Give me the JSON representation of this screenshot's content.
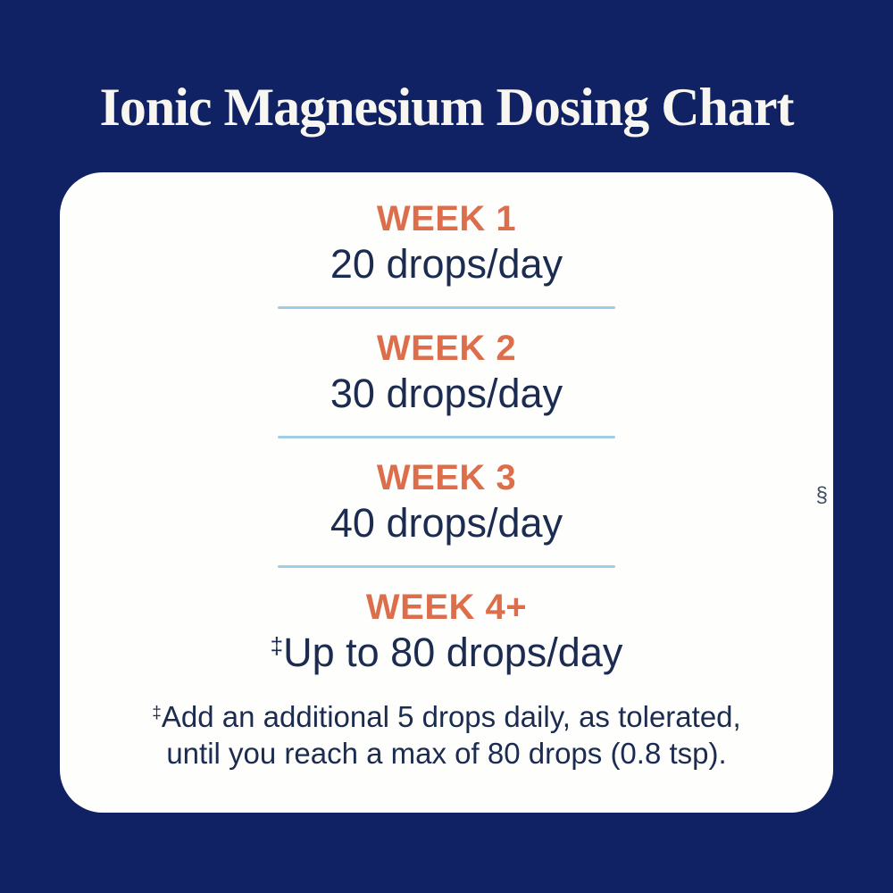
{
  "header": {
    "title": "Ionic Magnesium Dosing Chart"
  },
  "colors": {
    "background": "#102264",
    "card": "#FEFEFD",
    "title_text": "#F8F6F0",
    "week_heading": "#DD6E4B",
    "dose_text": "#1C2B50",
    "divider": "#9FCDE6",
    "section_mark": "#3E4C66"
  },
  "card": {
    "rows": [
      {
        "week": "WEEK 1",
        "dose": "20 drops/day"
      },
      {
        "week": "WEEK 2",
        "dose": "30 drops/day"
      },
      {
        "week": "WEEK 3",
        "dose": "40 drops/day"
      },
      {
        "week": "WEEK 4+",
        "dose_marker": "‡",
        "dose": "Up to 80 drops/day"
      }
    ],
    "footnote": {
      "marker": "‡",
      "line1": "Add an additional 5 drops daily, as tolerated,",
      "line2": "until you reach a max of 80 drops (0.8 tsp)."
    },
    "section_mark": "§"
  },
  "chart_data": {
    "type": "table",
    "title": "Ionic Magnesium Dosing Chart",
    "categories": [
      "WEEK 1",
      "WEEK 2",
      "WEEK 3",
      "WEEK 4+"
    ],
    "values": [
      20,
      30,
      40,
      80
    ],
    "unit": "drops/day",
    "value_labels": [
      "20 drops/day",
      "30 drops/day",
      "40 drops/day",
      "Up to 80 drops/day"
    ],
    "annotation": "‡Add an additional 5 drops daily, as tolerated, until you reach a max of 80 drops (0.8 tsp)."
  }
}
